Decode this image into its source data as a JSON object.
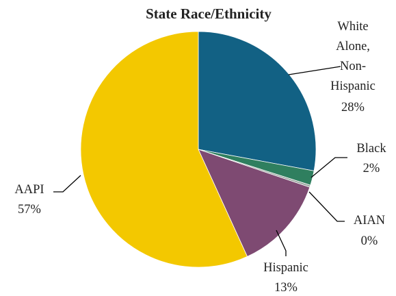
{
  "chart_data": {
    "type": "pie",
    "title": "State Race/Ethnicity",
    "slices": [
      {
        "name": "White Alone, Non-Hispanic",
        "value": 28,
        "percent_label": "28%",
        "color": "#126184"
      },
      {
        "name": "Black",
        "value": 2,
        "percent_label": "2%",
        "color": "#2f7f5f"
      },
      {
        "name": "AIAN",
        "value": 0.3,
        "percent_label": "0%",
        "color": "#9aa7a0"
      },
      {
        "name": "Hispanic",
        "value": 13,
        "percent_label": "13%",
        "color": "#7e4a72"
      },
      {
        "name": "AAPI",
        "value": 57,
        "percent_label": "57%",
        "color": "#f3c800"
      }
    ],
    "start_angle": "12 o'clock",
    "direction": "clockwise",
    "legend": "none (data labels)"
  }
}
